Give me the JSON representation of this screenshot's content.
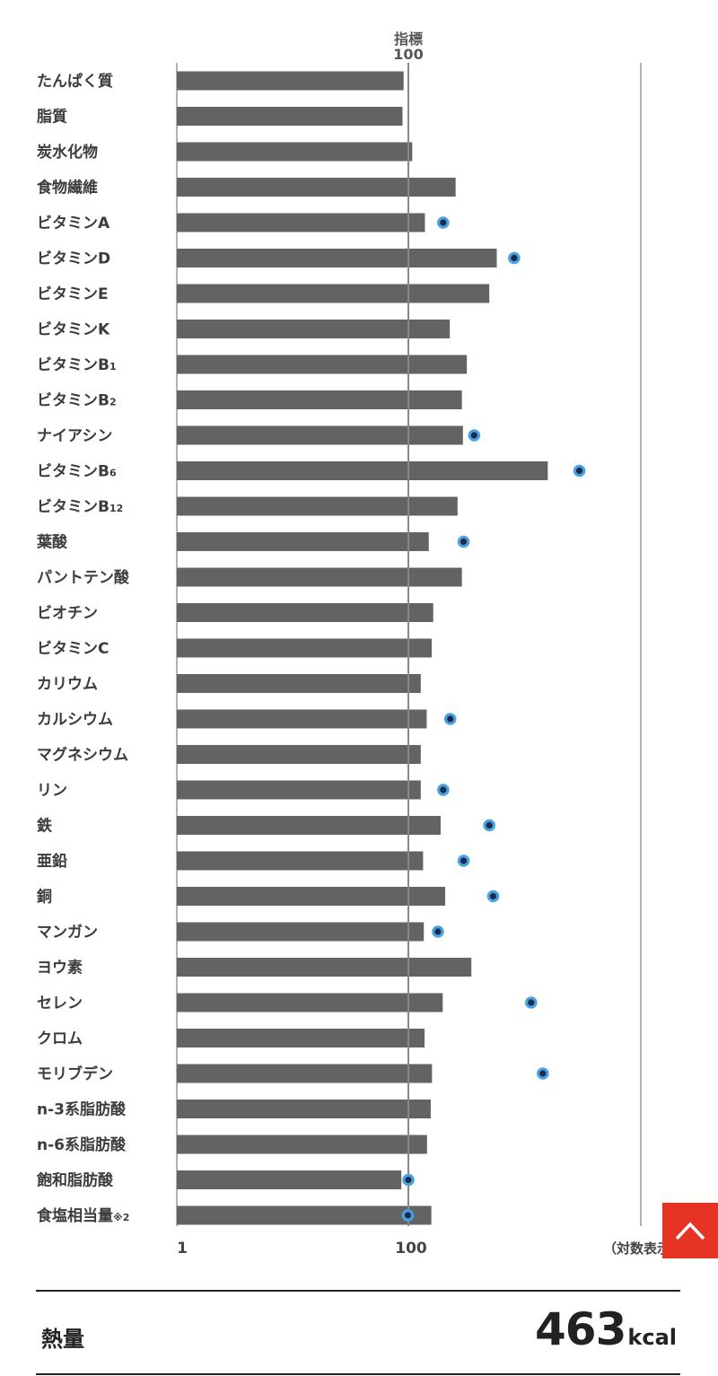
{
  "chart_data": {
    "type": "bar",
    "index_label_top": "指標",
    "index_label_value": "100",
    "axis_ticks": [
      "1",
      "100"
    ],
    "scale_note": "（対数表示",
    "categories": [
      "たんぱく質",
      "脂質",
      "炭水化物",
      "食物繊維",
      "ビタミンA",
      "ビタミンD",
      "ビタミンE",
      "ビタミンK",
      "ビタミンB",
      "ビタミンB",
      "ナイアシン",
      "ビタミンB",
      "ビタミンB",
      "葉酸",
      "パントテン酸",
      "ビオチン",
      "ビタミンC",
      "カリウム",
      "カルシウム",
      "マグネシウム",
      "リン",
      "鉄",
      "亜鉛",
      "銅",
      "マンガン",
      "ヨウ素",
      "セレン",
      "クロム",
      "モリブデン",
      "n-3系脂肪酸",
      "n-6系脂肪酸",
      "飽和脂肪酸",
      "食塩相当量"
    ],
    "label_subscripts": [
      "",
      "",
      "",
      "",
      "",
      "",
      "",
      "",
      "1",
      "2",
      "",
      "6",
      "12",
      "",
      "",
      "",
      "",
      "",
      "",
      "",
      "",
      "",
      "",
      "",
      "",
      "",
      "",
      "",
      "",
      "",
      "",
      "",
      "※2"
    ],
    "values": [
      91,
      89,
      108,
      256,
      139,
      580,
      500,
      228,
      320,
      290,
      296,
      1600,
      266,
      150,
      290,
      164,
      159,
      128,
      144,
      128,
      128,
      190,
      134,
      208,
      136,
      350,
      198,
      138,
      160,
      156,
      145,
      87,
      158
    ],
    "dot_values": [
      null,
      null,
      null,
      null,
      200,
      820,
      null,
      null,
      null,
      null,
      370,
      3000,
      null,
      300,
      null,
      null,
      null,
      null,
      230,
      null,
      200,
      500,
      300,
      540,
      180,
      null,
      1150,
      null,
      1450,
      null,
      null,
      100,
      99
    ],
    "x_scale": "log",
    "x_range": [
      1,
      10000
    ],
    "colors": {
      "bar": "#636363",
      "dot_fill": "#1a2b4c",
      "dot_ring": "#4aa0e0",
      "index_line": "#888888"
    }
  },
  "energy": {
    "label": "熱量",
    "value": "463",
    "unit": "kcal"
  },
  "back_to_top": {
    "icon": "chevron-up-icon"
  }
}
